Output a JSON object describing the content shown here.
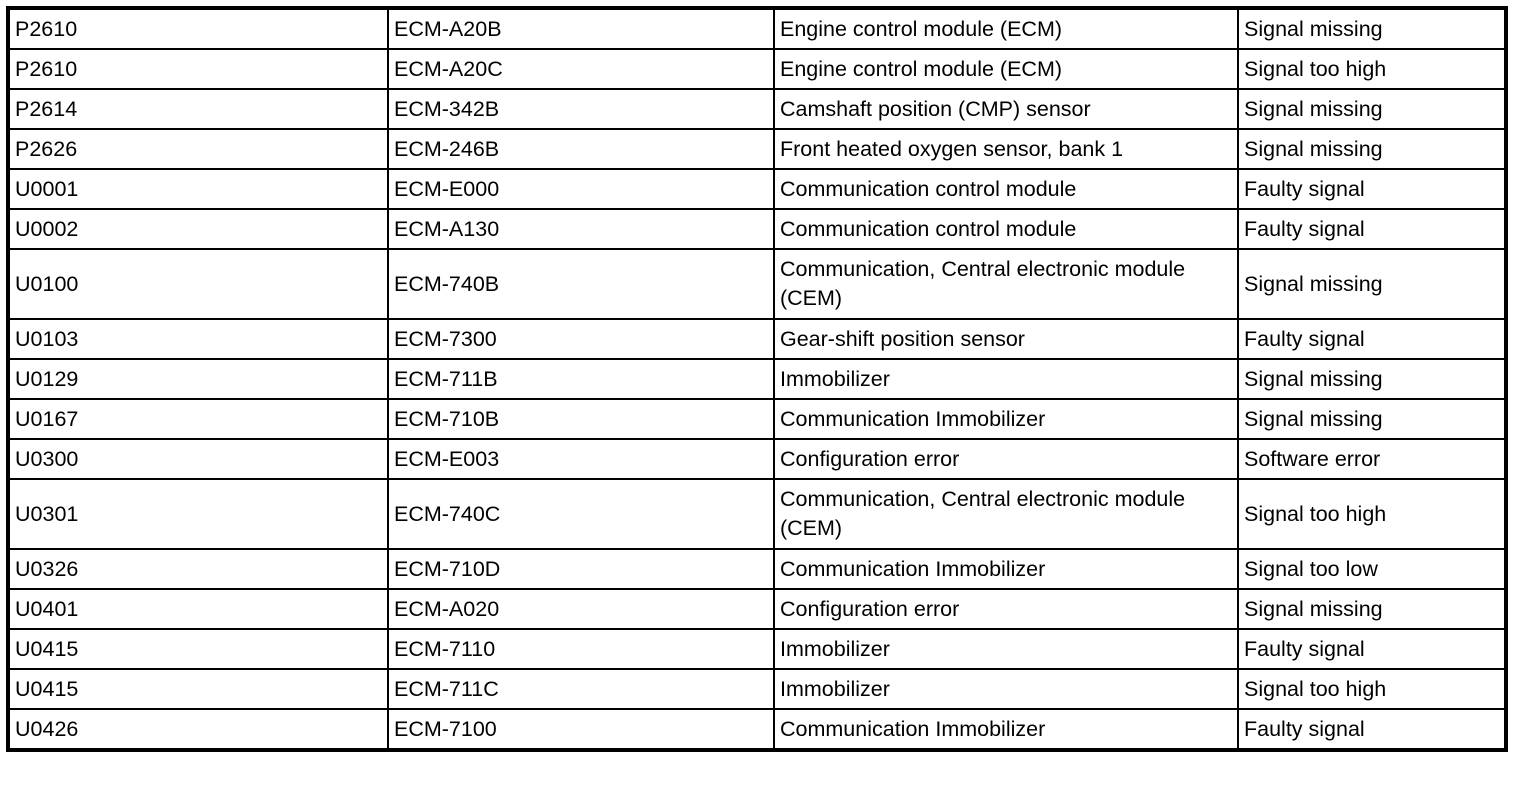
{
  "rows": [
    [
      "P2610",
      "ECM-A20B",
      "Engine control module (ECM)",
      "Signal missing"
    ],
    [
      "P2610",
      "ECM-A20C",
      "Engine control module (ECM)",
      "Signal too high"
    ],
    [
      "P2614",
      "ECM-342B",
      "Camshaft position (CMP) sensor",
      "Signal missing"
    ],
    [
      "P2626",
      "ECM-246B",
      "Front heated oxygen sensor, bank 1",
      "Signal missing"
    ],
    [
      "U0001",
      "ECM-E000",
      "Communication control module",
      "Faulty signal"
    ],
    [
      "U0002",
      "ECM-A130",
      "Communication control module",
      "Faulty signal"
    ],
    [
      "U0100",
      "ECM-740B",
      "Communication, Central electronic module (CEM)",
      "Signal missing"
    ],
    [
      "U0103",
      "ECM-7300",
      "Gear-shift position sensor",
      "Faulty signal"
    ],
    [
      "U0129",
      "ECM-711B",
      "Immobilizer",
      "Signal missing"
    ],
    [
      "U0167",
      "ECM-710B",
      "Communication Immobilizer",
      "Signal missing"
    ],
    [
      "U0300",
      "ECM-E003",
      "Configuration error",
      "Software error"
    ],
    [
      "U0301",
      "ECM-740C",
      "Communication, Central electronic module (CEM)",
      "Signal too high"
    ],
    [
      "U0326",
      "ECM-710D",
      "Communication Immobilizer",
      "Signal too low"
    ],
    [
      "U0401",
      "ECM-A020",
      "Configuration error",
      "Signal missing"
    ],
    [
      "U0415",
      "ECM-7110",
      "Immobilizer",
      "Faulty signal"
    ],
    [
      "U0415",
      "ECM-711C",
      "Immobilizer",
      "Signal too high"
    ],
    [
      "U0426",
      "ECM-7100",
      "Communication Immobilizer",
      "Faulty signal"
    ]
  ]
}
